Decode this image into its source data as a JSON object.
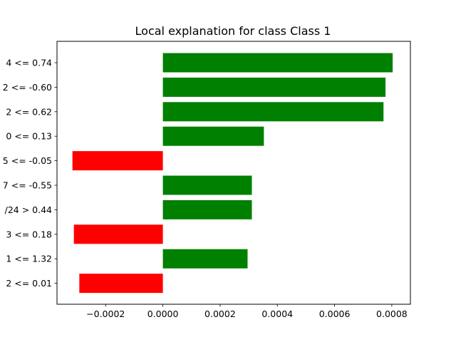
{
  "chart_data": {
    "type": "bar",
    "orientation": "horizontal",
    "title": "Local explanation for class Class 1",
    "xlabel": "",
    "ylabel": "",
    "categories": [
      "4 <= 0.74",
      "2 <= -0.60",
      "2 <= 0.62",
      "0 <= 0.13",
      "5 <= -0.05",
      "7 <= -0.55",
      "/24 > 0.44",
      "3 <= 0.18",
      "1 <= 1.32",
      "2 <= 0.01"
    ],
    "values": [
      0.000803,
      0.000778,
      0.000771,
      0.000353,
      -0.000316,
      0.000311,
      0.000311,
      -0.000311,
      0.000296,
      -0.000292
    ],
    "xlim": [
      -0.00037,
      0.000865
    ],
    "xticks": [
      -0.0002,
      0.0,
      0.0002,
      0.0004,
      0.0006,
      0.0008
    ],
    "xtick_labels": [
      "−0.0002",
      "0.0000",
      "0.0002",
      "0.0004",
      "0.0006",
      "0.0008"
    ],
    "grid": false,
    "legend": "none",
    "colors": {
      "positive": "#008000",
      "negative": "#ff0000"
    }
  }
}
